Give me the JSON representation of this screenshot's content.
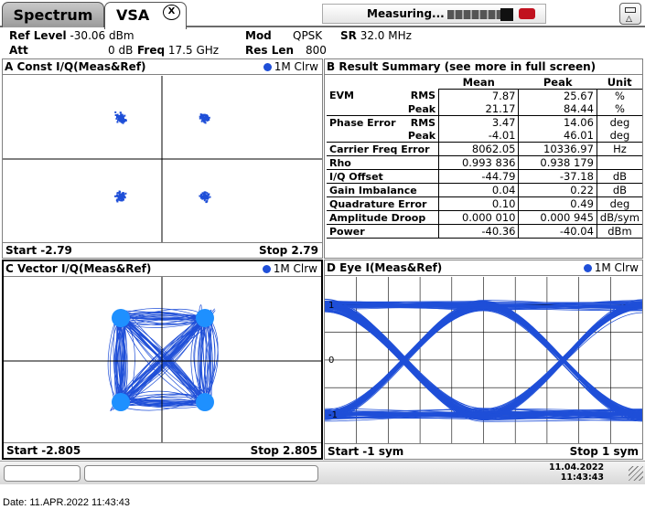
{
  "tabs": [
    {
      "label": "Spectrum"
    },
    {
      "label": "VSA"
    }
  ],
  "tab_close_label": "X",
  "header": {
    "ref_level_label": "Ref Level",
    "ref_level_value": "-30.06 dBm",
    "att_label": "Att",
    "att_value": "0 dB",
    "freq_label": "Freq",
    "freq_value": "17.5 GHz",
    "mod_label": "Mod",
    "mod_value": "QPSK",
    "sr_label": "SR",
    "sr_value": "32.0 MHz",
    "res_len_label": "Res Len",
    "res_len_value": "800"
  },
  "panel_a": {
    "title": "A Const I/Q(Meas&Ref)",
    "trace": "1M Clrw",
    "start": "Start -2.79",
    "stop": "Stop 2.79"
  },
  "panel_b": {
    "title": "B Result Summary (see more in full screen)",
    "headers": [
      "Mean",
      "Peak",
      "Unit"
    ],
    "rows": [
      {
        "label": "EVM",
        "sub": "RMS",
        "mean": "7.87",
        "peak": "25.67",
        "unit": "%"
      },
      {
        "label": "",
        "sub": "Peak",
        "mean": "21.17",
        "peak": "84.44",
        "unit": "%"
      },
      {
        "label": "Phase Error",
        "sub": "RMS",
        "mean": "3.47",
        "peak": "14.06",
        "unit": "deg"
      },
      {
        "label": "",
        "sub": "Peak",
        "mean": "-4.01",
        "peak": "46.01",
        "unit": "deg"
      },
      {
        "label": "Carrier Freq Error",
        "sub": "",
        "mean": "8062.05",
        "peak": "10336.97",
        "unit": "Hz"
      },
      {
        "label": "Rho",
        "sub": "",
        "mean": "0.993 836",
        "peak": "0.938 179",
        "unit": ""
      },
      {
        "label": "I/Q Offset",
        "sub": "",
        "mean": "-44.79",
        "peak": "-37.18",
        "unit": "dB"
      },
      {
        "label": "Gain Imbalance",
        "sub": "",
        "mean": "0.04",
        "peak": "0.22",
        "unit": "dB"
      },
      {
        "label": "Quadrature Error",
        "sub": "",
        "mean": "0.10",
        "peak": "0.49",
        "unit": "deg"
      },
      {
        "label": "Amplitude Droop",
        "sub": "",
        "mean": "0.000 010",
        "peak": "0.000 945",
        "unit": "dB/sym"
      },
      {
        "label": "Power",
        "sub": "",
        "mean": "-40.36",
        "peak": "-40.04",
        "unit": "dBm"
      }
    ]
  },
  "panel_c": {
    "title": "C Vector I/Q(Meas&Ref)",
    "trace": "1M Clrw",
    "start": "Start -2.805",
    "stop": "Stop 2.805"
  },
  "panel_d": {
    "title": "D Eye I(Meas&Ref)",
    "trace": "1M Clrw",
    "start": "Start -1 sym",
    "stop": "Stop 1 sym",
    "y_ticks": [
      "1",
      "0",
      "-1"
    ]
  },
  "status": {
    "message": "Measuring...",
    "date": "11.04.2022",
    "time": "11:43:43"
  },
  "footer_date": "Date: 11.APR.2022  11:43:43",
  "colors": {
    "trace": "#1f4fd8",
    "points": "#1e90ff",
    "logo": "#c1121f"
  }
}
